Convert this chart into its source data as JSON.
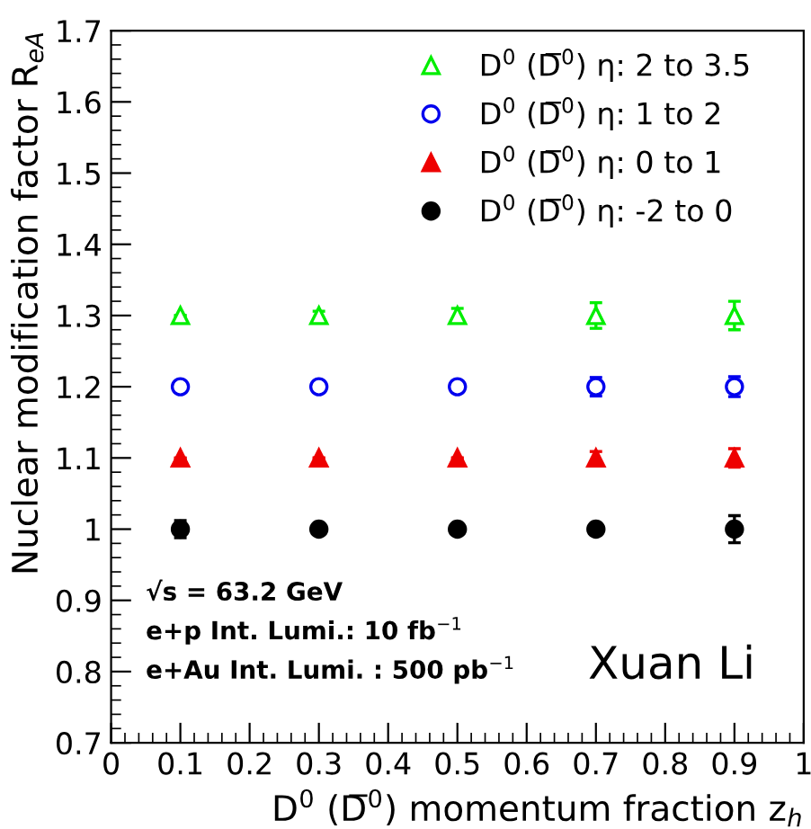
{
  "chart_data": {
    "type": "scatter",
    "xlabel": "D$^{0}$ (D̅$^{0}$) momentum fraction z$_{h}$",
    "ylabel": "Nuclear modification factor R$_{eA}$",
    "x": [
      0.1,
      0.3,
      0.5,
      0.7,
      0.9
    ],
    "series": [
      {
        "name": "D$^{0}$ (D̅$^{0}$) η: 2 to 3.5",
        "color": "#00ee00",
        "marker": "triangle",
        "values": [
          1.3,
          1.3,
          1.3,
          1.3,
          1.3
        ],
        "errors": [
          null,
          0.006,
          0.01,
          0.018,
          0.02
        ]
      },
      {
        "name": "D$^{0}$ (D̅$^{0}$) η: 1 to 2",
        "color": "#0000ee",
        "marker": "circle",
        "values": [
          1.2,
          1.2,
          1.2,
          1.2,
          1.2
        ],
        "errors": [
          null,
          null,
          0.008,
          0.013,
          0.014
        ]
      },
      {
        "name": "D$^{0}$ (D̅$^{0}$) η: 0 to 1",
        "color": "#ee0000",
        "marker": "triangle",
        "values": [
          1.1,
          1.1,
          1.1,
          1.1,
          1.1
        ],
        "errors": [
          null,
          null,
          null,
          0.009,
          0.013
        ]
      },
      {
        "name": "D$^{0}$ (D̅$^{0}$) η: -2 to 0",
        "color": "#000000",
        "marker": "circle",
        "values": [
          1.0,
          1.0,
          1.0,
          1.0,
          1.0
        ],
        "errors": [
          0.012,
          null,
          null,
          0.008,
          0.019
        ]
      }
    ],
    "xlim": [
      0,
      1
    ],
    "xticks": [
      0,
      0.1,
      0.2,
      0.3,
      0.4,
      0.5,
      0.6,
      0.7,
      0.8,
      0.9,
      1
    ],
    "ylim": [
      0.7,
      1.7
    ],
    "yticks": [
      0.7,
      0.8,
      0.9,
      1,
      1.1,
      1.2,
      1.3,
      1.4,
      1.5,
      1.6,
      1.7
    ],
    "legend": "top right",
    "grid": false,
    "annotations": [
      "√s = 63.2 GeV",
      "e+p Int. Lumi.: 10 fb$^{−1}$",
      "e+Au Int. Lumi. : 500 pb$^{−1}$",
      "Xuan Li"
    ]
  }
}
